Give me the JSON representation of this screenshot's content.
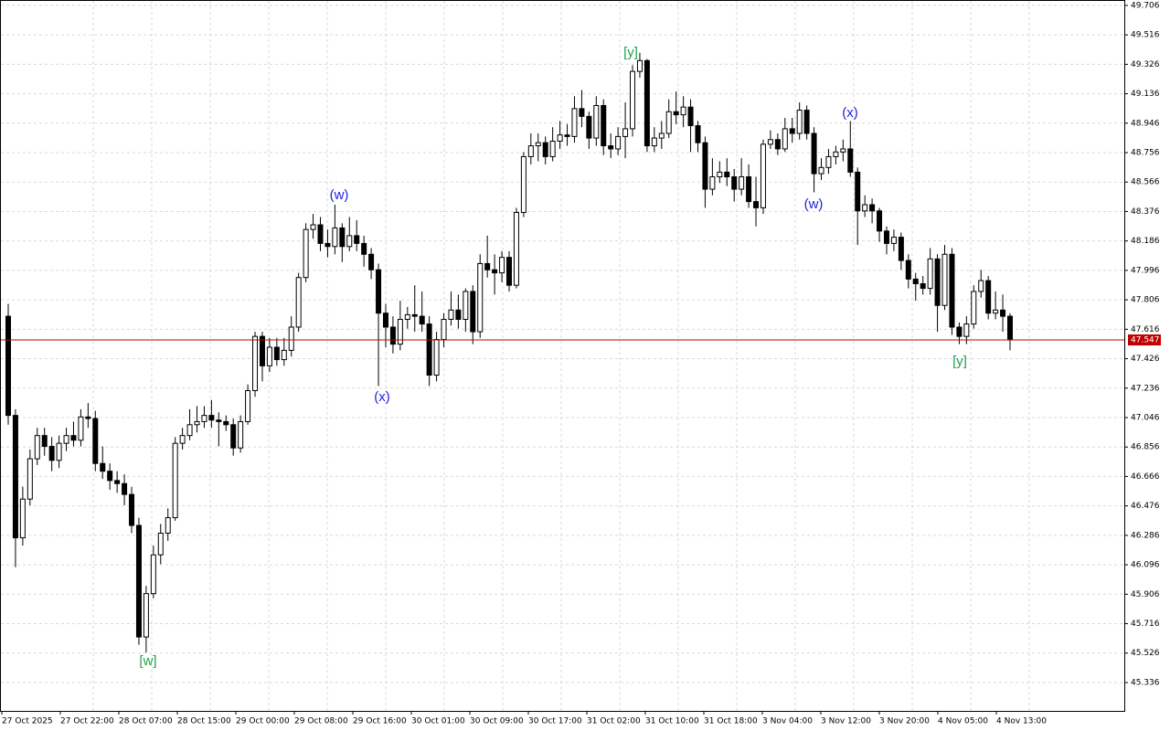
{
  "chart_data": {
    "type": "candlestick",
    "ylim": [
      45.153,
      49.741
    ],
    "yticks": [
      49.706,
      49.516,
      49.326,
      49.136,
      48.946,
      48.756,
      48.566,
      48.376,
      48.186,
      47.996,
      47.806,
      47.616,
      47.426,
      47.236,
      47.046,
      46.856,
      46.666,
      46.476,
      46.286,
      46.096,
      45.906,
      45.716,
      45.526,
      45.336
    ],
    "grid": true,
    "up_color": "#ffffff",
    "down_color": "#000000",
    "xlabels": [
      "27 Oct 2025",
      "27 Oct 22:00",
      "28 Oct 07:00",
      "28 Oct 15:00",
      "29 Oct 00:00",
      "29 Oct 08:00",
      "29 Oct 16:00",
      "30 Oct 01:00",
      "30 Oct 09:00",
      "30 Oct 17:00",
      "31 Oct 02:00",
      "31 Oct 10:00",
      "31 Oct 18:00",
      "3 Nov 04:00",
      "3 Nov 12:00",
      "3 Nov 20:00",
      "4 Nov 05:00",
      "4 Nov 13:00"
    ],
    "current_price": 47.547,
    "current_price_color": "#c00000",
    "annotations": [
      {
        "text": "[w]",
        "color": "#22a04a"
      },
      {
        "text": "(w)",
        "color": "#2020e0"
      },
      {
        "text": "(x)",
        "color": "#2020e0"
      },
      {
        "text": "[y]",
        "color": "#22a04a"
      },
      {
        "text": "(w)",
        "color": "#2020e0"
      },
      {
        "text": "(x)",
        "color": "#2020e0"
      },
      {
        "text": "[y]",
        "color": "#22a04a"
      }
    ],
    "open": [
      47.7,
      47.06,
      46.27,
      46.52,
      46.78,
      46.93,
      46.86,
      46.77,
      46.88,
      46.93,
      46.9,
      47.05,
      47.04,
      46.75,
      46.7,
      46.64,
      46.62,
      46.55,
      46.35,
      45.63,
      45.91,
      46.16,
      46.3,
      46.4,
      46.88,
      46.93,
      47.0,
      47.02,
      47.06,
      47.03,
      47.02,
      47.0,
      46.85,
      47.02,
      47.22,
      47.57,
      47.38,
      47.5,
      47.42,
      47.48,
      47.63,
      47.95,
      48.26,
      48.29,
      48.17,
      48.15,
      48.27,
      48.15,
      48.22,
      48.17,
      48.1,
      48.0,
      47.72,
      47.63,
      47.52,
      47.68,
      47.71,
      47.7,
      47.65,
      47.32,
      47.55,
      47.68,
      47.74,
      47.68,
      47.86,
      47.6,
      48.04,
      48.0,
      47.98,
      48.08,
      47.9,
      48.37,
      48.73,
      48.8,
      48.82,
      48.73,
      48.83,
      48.87,
      48.86,
      49.04,
      48.99,
      48.85,
      49.06,
      48.8,
      48.78,
      48.86,
      48.91,
      49.28,
      49.35,
      48.8,
      48.85,
      48.88,
      49.02,
      49.0,
      49.05,
      48.93,
      48.82,
      48.52,
      48.6,
      48.63,
      48.6,
      48.52,
      48.6,
      48.44,
      48.4,
      48.81,
      48.84,
      48.78,
      48.91,
      48.88,
      49.03,
      48.88,
      48.62,
      48.66,
      48.73,
      48.76,
      48.78,
      48.63,
      48.38,
      48.42,
      48.38,
      48.25,
      48.17,
      48.21,
      48.06,
      47.94,
      47.91,
      47.88,
      48.07,
      47.77,
      48.1,
      47.63,
      47.57,
      47.65,
      47.86,
      47.93,
      47.72,
      47.74,
      47.7
    ],
    "high": [
      47.78,
      47.1,
      46.6,
      46.84,
      46.98,
      46.98,
      46.92,
      46.93,
      46.98,
      47.02,
      47.1,
      47.14,
      47.09,
      46.86,
      46.75,
      46.7,
      46.68,
      46.6,
      46.4,
      45.96,
      46.22,
      46.36,
      46.46,
      46.92,
      46.98,
      47.1,
      47.12,
      47.12,
      47.16,
      47.08,
      47.06,
      47.04,
      47.06,
      47.26,
      47.6,
      47.6,
      47.56,
      47.56,
      47.56,
      47.7,
      47.98,
      48.3,
      48.36,
      48.34,
      48.26,
      48.42,
      48.3,
      48.34,
      48.32,
      48.22,
      48.14,
      48.04,
      47.78,
      47.7,
      47.8,
      47.76,
      47.9,
      47.86,
      47.7,
      47.6,
      47.72,
      47.86,
      47.84,
      47.88,
      47.9,
      48.1,
      48.22,
      48.1,
      48.12,
      48.12,
      48.4,
      48.76,
      48.88,
      48.88,
      48.86,
      48.92,
      48.96,
      48.94,
      49.12,
      49.16,
      49.02,
      49.12,
      49.1,
      48.88,
      48.92,
      49.08,
      49.32,
      49.4,
      49.36,
      48.92,
      48.96,
      49.1,
      49.15,
      49.12,
      49.1,
      48.96,
      48.86,
      48.72,
      48.7,
      48.72,
      48.65,
      48.72,
      48.68,
      48.6,
      48.84,
      48.9,
      48.88,
      48.98,
      48.98,
      49.08,
      49.06,
      48.92,
      48.72,
      48.78,
      48.8,
      48.84,
      48.96,
      48.66,
      48.48,
      48.46,
      48.4,
      48.28,
      48.26,
      48.24,
      48.1,
      47.98,
      47.96,
      48.14,
      48.1,
      48.16,
      48.14,
      47.66,
      47.7,
      47.9,
      48.0,
      47.96,
      47.86,
      47.84,
      47.72
    ],
    "low": [
      47.0,
      46.08,
      46.22,
      46.48,
      46.74,
      46.8,
      46.7,
      46.72,
      46.83,
      46.86,
      46.86,
      46.98,
      46.7,
      46.65,
      46.58,
      46.56,
      46.48,
      46.3,
      45.58,
      45.53,
      45.88,
      46.1,
      46.25,
      46.38,
      46.84,
      46.9,
      46.95,
      46.98,
      46.98,
      46.86,
      46.96,
      46.8,
      46.82,
      47.0,
      47.18,
      47.28,
      47.34,
      47.38,
      47.38,
      47.44,
      47.6,
      47.92,
      48.2,
      48.12,
      48.08,
      48.1,
      48.05,
      48.12,
      48.12,
      48.02,
      47.94,
      47.25,
      47.5,
      47.46,
      47.48,
      47.62,
      47.6,
      47.6,
      47.25,
      47.28,
      47.5,
      47.64,
      47.62,
      47.6,
      47.52,
      47.56,
      47.95,
      47.84,
      47.92,
      47.86,
      47.88,
      48.34,
      48.68,
      48.7,
      48.68,
      48.7,
      48.78,
      48.8,
      48.82,
      48.92,
      48.78,
      48.8,
      48.74,
      48.72,
      48.74,
      48.72,
      48.86,
      49.24,
      48.76,
      48.76,
      48.78,
      48.85,
      48.94,
      48.92,
      48.76,
      48.76,
      48.4,
      48.48,
      48.56,
      48.54,
      48.44,
      48.48,
      48.4,
      48.28,
      48.36,
      48.78,
      48.74,
      48.76,
      48.82,
      48.84,
      48.84,
      48.5,
      48.58,
      48.62,
      48.68,
      48.7,
      48.6,
      48.16,
      48.34,
      48.3,
      48.18,
      48.1,
      48.12,
      48.0,
      47.88,
      47.8,
      47.84,
      47.84,
      47.6,
      47.74,
      47.58,
      47.52,
      47.52,
      47.62,
      47.82,
      47.68,
      47.68,
      47.6,
      47.48
    ],
    "close": [
      47.06,
      46.27,
      46.52,
      46.78,
      46.93,
      46.86,
      46.77,
      46.88,
      46.93,
      46.9,
      47.05,
      47.04,
      46.75,
      46.7,
      46.64,
      46.62,
      46.55,
      46.35,
      45.63,
      45.91,
      46.16,
      46.3,
      46.4,
      46.88,
      46.93,
      47.0,
      47.02,
      47.06,
      47.03,
      47.02,
      47.0,
      46.85,
      47.02,
      47.22,
      47.57,
      47.38,
      47.5,
      47.42,
      47.48,
      47.63,
      47.95,
      48.26,
      48.29,
      48.17,
      48.15,
      48.27,
      48.15,
      48.22,
      48.17,
      48.1,
      48.0,
      47.72,
      47.63,
      47.52,
      47.68,
      47.71,
      47.7,
      47.65,
      47.32,
      47.55,
      47.68,
      47.74,
      47.68,
      47.86,
      47.6,
      48.04,
      48.0,
      47.98,
      48.08,
      47.9,
      48.37,
      48.73,
      48.8,
      48.82,
      48.73,
      48.83,
      48.87,
      48.86,
      49.04,
      48.99,
      48.85,
      49.06,
      48.8,
      48.78,
      48.86,
      48.91,
      49.28,
      49.35,
      48.8,
      48.85,
      48.88,
      49.02,
      49.0,
      49.05,
      48.93,
      48.82,
      48.52,
      48.6,
      48.63,
      48.6,
      48.52,
      48.6,
      48.44,
      48.4,
      48.81,
      48.84,
      48.78,
      48.91,
      48.88,
      49.03,
      48.88,
      48.62,
      48.66,
      48.73,
      48.76,
      48.78,
      48.63,
      48.38,
      48.42,
      48.38,
      48.25,
      48.17,
      48.21,
      48.06,
      47.94,
      47.91,
      47.88,
      48.07,
      47.77,
      48.1,
      47.63,
      47.57,
      47.65,
      47.86,
      47.93,
      47.72,
      47.74,
      47.7,
      47.547
    ]
  }
}
